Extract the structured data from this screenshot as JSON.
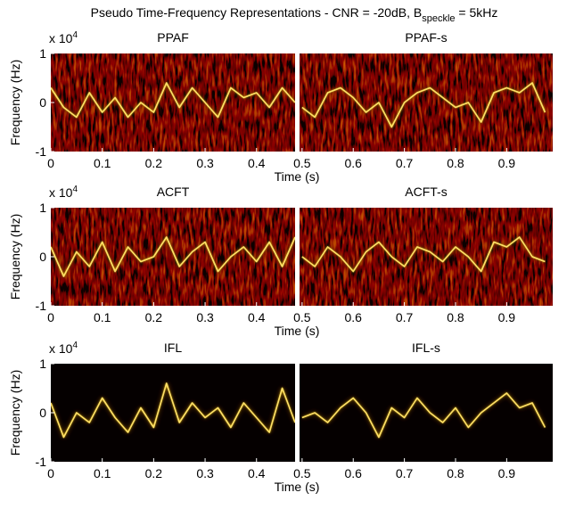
{
  "suptitle": {
    "main": "Pseudo Time-Frequency Representations - CNR = -20dB, B",
    "subscript": "speckle",
    "suffix": " = 5kHz"
  },
  "chart_data": [
    {
      "type": "line",
      "title": "PPAF",
      "ylabel": "Frequency (Hz)",
      "xlabel": "Time (s)",
      "y_multiplier": {
        "base": "x 10",
        "exponent": "4"
      },
      "x": [
        0,
        0.025,
        0.05,
        0.075,
        0.1,
        0.125,
        0.15,
        0.175,
        0.2,
        0.225,
        0.25,
        0.275,
        0.3,
        0.325,
        0.35,
        0.375,
        0.4,
        0.425,
        0.45,
        0.475
      ],
      "values": [
        0.3,
        -0.1,
        -0.3,
        0.2,
        -0.2,
        0.1,
        -0.3,
        0.0,
        -0.2,
        0.4,
        -0.1,
        0.3,
        0.0,
        -0.3,
        0.3,
        0.1,
        0.2,
        -0.1,
        0.3,
        0.0
      ],
      "xlim": [
        0,
        0.475
      ],
      "ylim": [
        -1,
        1
      ],
      "xticks": [
        0,
        0.1,
        0.2,
        0.3,
        0.4
      ],
      "yticks": [
        -1,
        0,
        1
      ],
      "color": "#ffe066",
      "background": "#3a0400",
      "noise": true
    },
    {
      "type": "line",
      "title": "PPAF-s",
      "x": [
        0.5,
        0.525,
        0.55,
        0.575,
        0.6,
        0.625,
        0.65,
        0.675,
        0.7,
        0.725,
        0.75,
        0.775,
        0.8,
        0.825,
        0.85,
        0.875,
        0.9,
        0.925,
        0.95,
        0.975
      ],
      "values": [
        -0.1,
        -0.3,
        0.2,
        0.3,
        0.1,
        -0.2,
        0.0,
        -0.5,
        0.0,
        0.2,
        0.3,
        0.1,
        -0.1,
        0.0,
        -0.4,
        0.2,
        0.3,
        0.2,
        0.4,
        -0.2
      ],
      "xlim": [
        0.495,
        0.99
      ],
      "ylim": [
        -1,
        1
      ],
      "xticks": [
        0.5,
        0.6,
        0.7,
        0.8,
        0.9
      ],
      "color": "#ffe066",
      "background": "#3a0400",
      "noise": true
    },
    {
      "type": "line",
      "title": "ACFT",
      "ylabel": "Frequency (Hz)",
      "xlabel": "Time (s)",
      "y_multiplier": {
        "base": "x 10",
        "exponent": "4"
      },
      "x": [
        0,
        0.025,
        0.05,
        0.075,
        0.1,
        0.125,
        0.15,
        0.175,
        0.2,
        0.225,
        0.25,
        0.275,
        0.3,
        0.325,
        0.35,
        0.375,
        0.4,
        0.425,
        0.45,
        0.475
      ],
      "values": [
        0.2,
        -0.4,
        0.1,
        -0.2,
        0.3,
        -0.3,
        0.2,
        -0.1,
        0.0,
        0.4,
        -0.2,
        0.1,
        0.3,
        -0.3,
        0.0,
        0.2,
        -0.1,
        0.3,
        -0.2,
        0.4
      ],
      "xlim": [
        0,
        0.475
      ],
      "ylim": [
        -1,
        1
      ],
      "xticks": [
        0,
        0.1,
        0.2,
        0.3,
        0.4
      ],
      "yticks": [
        -1,
        0,
        1
      ],
      "color": "#ffe066",
      "background": "#3a0400",
      "noise": true
    },
    {
      "type": "line",
      "title": "ACFT-s",
      "x": [
        0.5,
        0.525,
        0.55,
        0.575,
        0.6,
        0.625,
        0.65,
        0.675,
        0.7,
        0.725,
        0.75,
        0.775,
        0.8,
        0.825,
        0.85,
        0.875,
        0.9,
        0.925,
        0.95,
        0.975
      ],
      "values": [
        0.0,
        -0.2,
        0.2,
        0.0,
        -0.3,
        0.1,
        0.3,
        0.0,
        -0.2,
        0.2,
        0.1,
        -0.1,
        0.2,
        0.0,
        -0.3,
        0.3,
        0.2,
        0.4,
        0.0,
        -0.1
      ],
      "xlim": [
        0.495,
        0.99
      ],
      "ylim": [
        -1,
        1
      ],
      "xticks": [
        0.5,
        0.6,
        0.7,
        0.8,
        0.9
      ],
      "color": "#ffe066",
      "background": "#3a0400",
      "noise": true
    },
    {
      "type": "line",
      "title": "IFL",
      "ylabel": "Frequency (Hz)",
      "xlabel": "Time (s)",
      "y_multiplier": {
        "base": "x 10",
        "exponent": "4"
      },
      "x": [
        0,
        0.025,
        0.05,
        0.075,
        0.1,
        0.125,
        0.15,
        0.175,
        0.2,
        0.225,
        0.25,
        0.275,
        0.3,
        0.325,
        0.35,
        0.375,
        0.4,
        0.425,
        0.45,
        0.475
      ],
      "values": [
        0.2,
        -0.5,
        0.0,
        -0.2,
        0.3,
        -0.1,
        -0.4,
        0.1,
        -0.3,
        0.6,
        -0.2,
        0.2,
        -0.1,
        0.1,
        -0.3,
        0.2,
        -0.1,
        -0.4,
        0.5,
        -0.2
      ],
      "xlim": [
        0,
        0.475
      ],
      "ylim": [
        -1,
        1
      ],
      "xticks": [
        0,
        0.1,
        0.2,
        0.3,
        0.4
      ],
      "yticks": [
        -1,
        0,
        1
      ],
      "color": "#ffe066",
      "background": "#050000",
      "noise": false
    },
    {
      "type": "line",
      "title": "IFL-s",
      "x": [
        0.5,
        0.525,
        0.55,
        0.575,
        0.6,
        0.625,
        0.65,
        0.675,
        0.7,
        0.725,
        0.75,
        0.775,
        0.8,
        0.825,
        0.85,
        0.875,
        0.9,
        0.925,
        0.95,
        0.975
      ],
      "values": [
        -0.1,
        0.0,
        -0.2,
        0.1,
        0.3,
        0.0,
        -0.5,
        0.1,
        -0.1,
        0.3,
        0.0,
        -0.2,
        0.1,
        -0.3,
        0.0,
        0.2,
        0.4,
        0.1,
        0.2,
        -0.3
      ],
      "xlim": [
        0.495,
        0.99
      ],
      "ylim": [
        -1,
        1
      ],
      "xticks": [
        0.5,
        0.6,
        0.7,
        0.8,
        0.9
      ],
      "color": "#ffe066",
      "background": "#050000",
      "noise": false
    }
  ]
}
